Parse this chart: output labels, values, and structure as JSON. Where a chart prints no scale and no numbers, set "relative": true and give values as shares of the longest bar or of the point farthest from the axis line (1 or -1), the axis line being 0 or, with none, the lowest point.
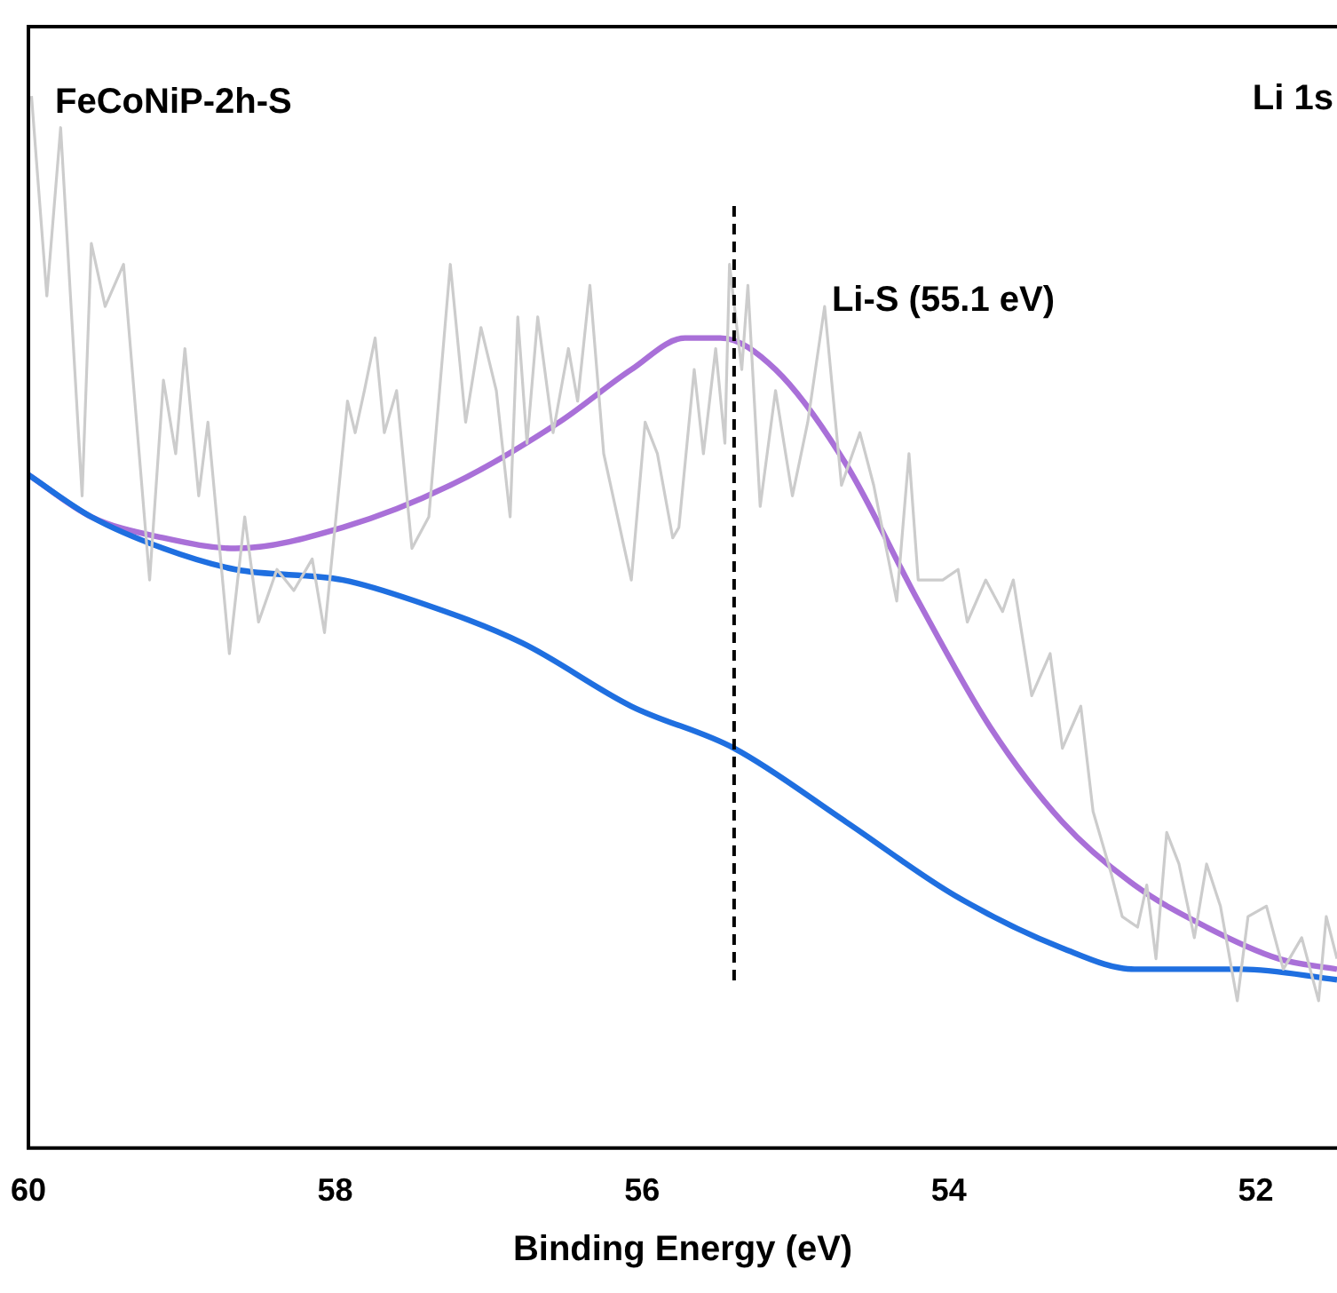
{
  "chart_data": {
    "type": "line",
    "relative": true,
    "xlabel": "Binding Energy (eV)",
    "xlim": [
      60,
      51.47
    ],
    "xticks": [
      60,
      58,
      56,
      54,
      52
    ],
    "grid": false,
    "legend": false,
    "marker": "none",
    "line_style": "solid",
    "annotations": [
      "FeCoNiP-2h-S",
      "Li 1s"
    ],
    "ref_lines": [
      {
        "axis": "x",
        "value": 55.4,
        "label": "Li-S (55.1 eV)",
        "color": "#000000",
        "line_style": "dashed"
      }
    ],
    "series": [
      {
        "color": "#cccccc",
        "x": [
          59.98,
          59.88,
          59.79,
          59.65,
          59.59,
          59.5,
          59.38,
          59.21,
          59.12,
          59.04,
          58.98,
          58.89,
          58.83,
          58.69,
          58.59,
          58.5,
          58.38,
          58.27,
          58.15,
          58.07,
          57.92,
          57.87,
          57.81,
          57.74,
          57.68,
          57.6,
          57.5,
          57.39,
          57.25,
          57.15,
          57.05,
          56.95,
          56.86,
          56.81,
          56.75,
          56.68,
          56.58,
          56.48,
          56.42,
          56.34,
          56.25,
          56.07,
          55.98,
          55.9,
          55.8,
          55.76,
          55.66,
          55.6,
          55.52,
          55.46,
          55.43,
          55.35,
          55.31,
          55.23,
          55.13,
          55.02,
          54.92,
          54.81,
          54.7,
          54.58,
          54.49,
          54.34,
          54.26,
          54.2,
          54.04,
          53.94,
          53.88,
          53.76,
          53.65,
          53.58,
          53.46,
          53.34,
          53.26,
          53.14,
          53.06,
          52.94,
          52.87,
          52.77,
          52.71,
          52.65,
          52.58,
          52.5,
          52.4,
          52.32,
          52.23,
          52.12,
          52.05,
          51.93,
          51.82,
          51.7,
          51.59,
          51.54,
          51.47
        ],
        "values": [
          1.0,
          0.81,
          0.97,
          0.62,
          0.86,
          0.8,
          0.84,
          0.54,
          0.73,
          0.66,
          0.76,
          0.62,
          0.69,
          0.47,
          0.6,
          0.5,
          0.55,
          0.53,
          0.56,
          0.49,
          0.71,
          0.68,
          0.72,
          0.77,
          0.68,
          0.72,
          0.57,
          0.6,
          0.84,
          0.69,
          0.78,
          0.72,
          0.6,
          0.79,
          0.67,
          0.79,
          0.68,
          0.76,
          0.71,
          0.82,
          0.66,
          0.54,
          0.69,
          0.66,
          0.58,
          0.59,
          0.74,
          0.66,
          0.76,
          0.67,
          0.84,
          0.74,
          0.82,
          0.61,
          0.72,
          0.62,
          0.69,
          0.8,
          0.63,
          0.68,
          0.63,
          0.52,
          0.66,
          0.54,
          0.54,
          0.55,
          0.5,
          0.54,
          0.51,
          0.54,
          0.43,
          0.47,
          0.38,
          0.42,
          0.32,
          0.26,
          0.22,
          0.21,
          0.25,
          0.18,
          0.3,
          0.27,
          0.2,
          0.27,
          0.23,
          0.14,
          0.22,
          0.23,
          0.17,
          0.2,
          0.14,
          0.22,
          0.18
        ]
      },
      {
        "color": "#1f6fe0",
        "x": [
          60,
          59.59,
          59.12,
          58.65,
          57.95,
          57.48,
          56.78,
          56.07,
          55.4,
          54.67,
          53.96,
          53.26,
          52.79,
          52.09,
          51.47
        ],
        "values": [
          0.64,
          0.6,
          0.57,
          0.55,
          0.54,
          0.52,
          0.48,
          0.42,
          0.38,
          0.31,
          0.24,
          0.19,
          0.17,
          0.17,
          0.16
        ]
      },
      {
        "color": "#a970d8",
        "x": [
          60,
          59.59,
          59.12,
          58.65,
          57.95,
          57.25,
          56.54,
          56.07,
          55.72,
          55.49,
          55.13,
          54.67,
          54.2,
          53.73,
          53.26,
          52.79,
          52.32,
          51.85,
          51.47
        ],
        "values": [
          0.64,
          0.6,
          0.58,
          0.57,
          0.59,
          0.63,
          0.69,
          0.74,
          0.77,
          0.77,
          0.74,
          0.65,
          0.52,
          0.4,
          0.31,
          0.25,
          0.21,
          0.18,
          0.17
        ]
      }
    ]
  }
}
